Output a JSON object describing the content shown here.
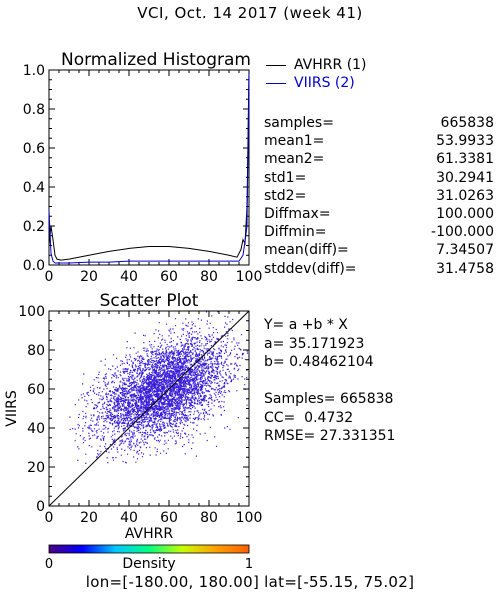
{
  "title": "VCI,  Oct. 14 2017 (week 41)",
  "chart_data": [
    {
      "type": "line",
      "title": "Normalized Histogram",
      "xlim": [
        0,
        100
      ],
      "ylim": [
        0,
        1.0
      ],
      "x_ticks": [
        "0",
        "20",
        "40",
        "60",
        "80",
        "100"
      ],
      "y_ticks": [
        "0.0",
        "0.2",
        "0.4",
        "0.6",
        "0.8",
        "1.0"
      ],
      "legend_position": "top-right (outside plot)",
      "series": [
        {
          "name": "AVHRR (1)",
          "color": "#000000",
          "x": [
            0,
            1,
            2,
            3,
            4,
            6,
            10,
            20,
            30,
            40,
            50,
            60,
            70,
            80,
            90,
            94,
            96,
            97,
            98,
            99,
            100
          ],
          "y": [
            0.1,
            0.2,
            0.13,
            0.05,
            0.03,
            0.025,
            0.03,
            0.05,
            0.07,
            0.085,
            0.095,
            0.095,
            0.085,
            0.07,
            0.05,
            0.04,
            0.08,
            0.13,
            0.11,
            0.3,
            1.0
          ]
        },
        {
          "name": "VIIRS (2)",
          "color": "#0000cc",
          "x": [
            0,
            1,
            2,
            3,
            5,
            10,
            20,
            30,
            40,
            50,
            60,
            70,
            80,
            90,
            95,
            97,
            98,
            99,
            100
          ],
          "y": [
            0.28,
            0.06,
            0.02,
            0.01,
            0.01,
            0.01,
            0.015,
            0.015,
            0.02,
            0.02,
            0.02,
            0.02,
            0.02,
            0.02,
            0.02,
            0.05,
            0.12,
            0.2,
            0.98
          ]
        }
      ]
    },
    {
      "type": "scatter",
      "title": "Scatter Plot",
      "xlabel": "AVHRR",
      "ylabel": "VIIRS",
      "xlim": [
        0,
        100
      ],
      "ylim": [
        0,
        100
      ],
      "x_ticks": [
        "0",
        "20",
        "40",
        "60",
        "80",
        "100"
      ],
      "y_ticks": [
        "0",
        "20",
        "40",
        "60",
        "80",
        "100"
      ],
      "fit": {
        "intercept": 35.171923,
        "slope": 0.48462104
      },
      "point_cloud": {
        "center": [
          57,
          60
        ],
        "spread": [
          16,
          13
        ],
        "correlation": 0.47,
        "x_range": [
          10,
          100
        ],
        "y_range": [
          22,
          100
        ],
        "color": "#3a1fd8",
        "point_count_shown": 5200
      },
      "colorbar": {
        "label": "Density",
        "min_label": "0",
        "max_label": "1",
        "colors": [
          "#4b0082",
          "#0000ff",
          "#00c8ff",
          "#00ff80",
          "#c8ff00",
          "#ffa000",
          "#ff6000"
        ]
      }
    }
  ],
  "legend": [
    "AVHRR (1)",
    "VIIRS (2)"
  ],
  "stats": [
    {
      "label": "samples=",
      "value": "665838"
    },
    {
      "label": "mean1=",
      "value": "53.9933"
    },
    {
      "label": "mean2=",
      "value": "61.3381"
    },
    {
      "label": "std1=",
      "value": "30.2941"
    },
    {
      "label": "std2=",
      "value": "31.0263"
    },
    {
      "label": "Diffmax=",
      "value": "100.000"
    },
    {
      "label": "Diffmin=",
      "value": "-100.000"
    },
    {
      "label": "mean(diff)=",
      "value": "7.34507"
    },
    {
      "label": "stddev(diff)=",
      "value": "31.4758"
    }
  ],
  "fit_text": {
    "equation": "Y= a +b * X",
    "a": "a= 35.171923",
    "b": "b= 0.48462104",
    "samples": "Samples= 665838",
    "cc": "CC=  0.4732",
    "rmse": "RMSE= 27.331351"
  },
  "footer": "lon=[-180.00, 180.00] lat=[-55.15, 75.02]"
}
